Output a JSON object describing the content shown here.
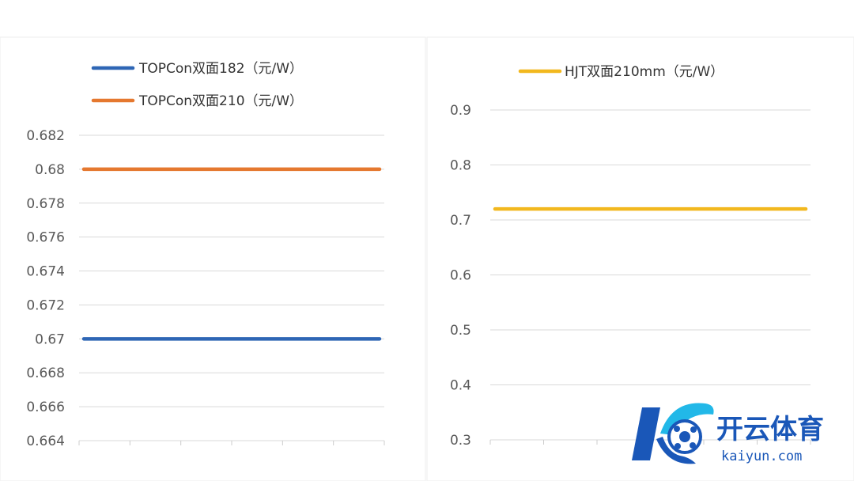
{
  "chart_data": [
    {
      "type": "line",
      "title": "",
      "xlabel": "",
      "ylabel": "",
      "ylim": [
        0.664,
        0.682
      ],
      "yticks": [
        "0.682",
        "0.68",
        "0.678",
        "0.676",
        "0.674",
        "0.672",
        "0.67",
        "0.668",
        "0.666",
        "0.664"
      ],
      "x": [
        1,
        2,
        3,
        4,
        5,
        6
      ],
      "grid": true,
      "legend_position": "top-left",
      "series": [
        {
          "name": "TOPCon双面182（元/W）",
          "color": "#2e66b5",
          "values": [
            0.67,
            0.67,
            0.67,
            0.67,
            0.67,
            0.67
          ]
        },
        {
          "name": "TOPCon双面210（元/W）",
          "color": "#e5782f",
          "values": [
            0.68,
            0.68,
            0.68,
            0.68,
            0.68,
            0.68
          ]
        }
      ]
    },
    {
      "type": "line",
      "title": "",
      "xlabel": "",
      "ylabel": "",
      "ylim": [
        0.3,
        0.9
      ],
      "yticks": [
        "0.9",
        "0.8",
        "0.7",
        "0.6",
        "0.5",
        "0.4",
        "0.3"
      ],
      "x": [
        1,
        2,
        3,
        4,
        5,
        6
      ],
      "grid": true,
      "legend_position": "top",
      "series": [
        {
          "name": "HJT双面210mm（元/W）",
          "color": "#f2b81e",
          "values": [
            0.72,
            0.72,
            0.72,
            0.72,
            0.72,
            0.72
          ]
        }
      ]
    }
  ],
  "watermark": {
    "brand_cn": "开云体育",
    "brand_url": "kaiyun.com",
    "logo_color": "#1a57b8",
    "logo_accent": "#22b8e8"
  }
}
